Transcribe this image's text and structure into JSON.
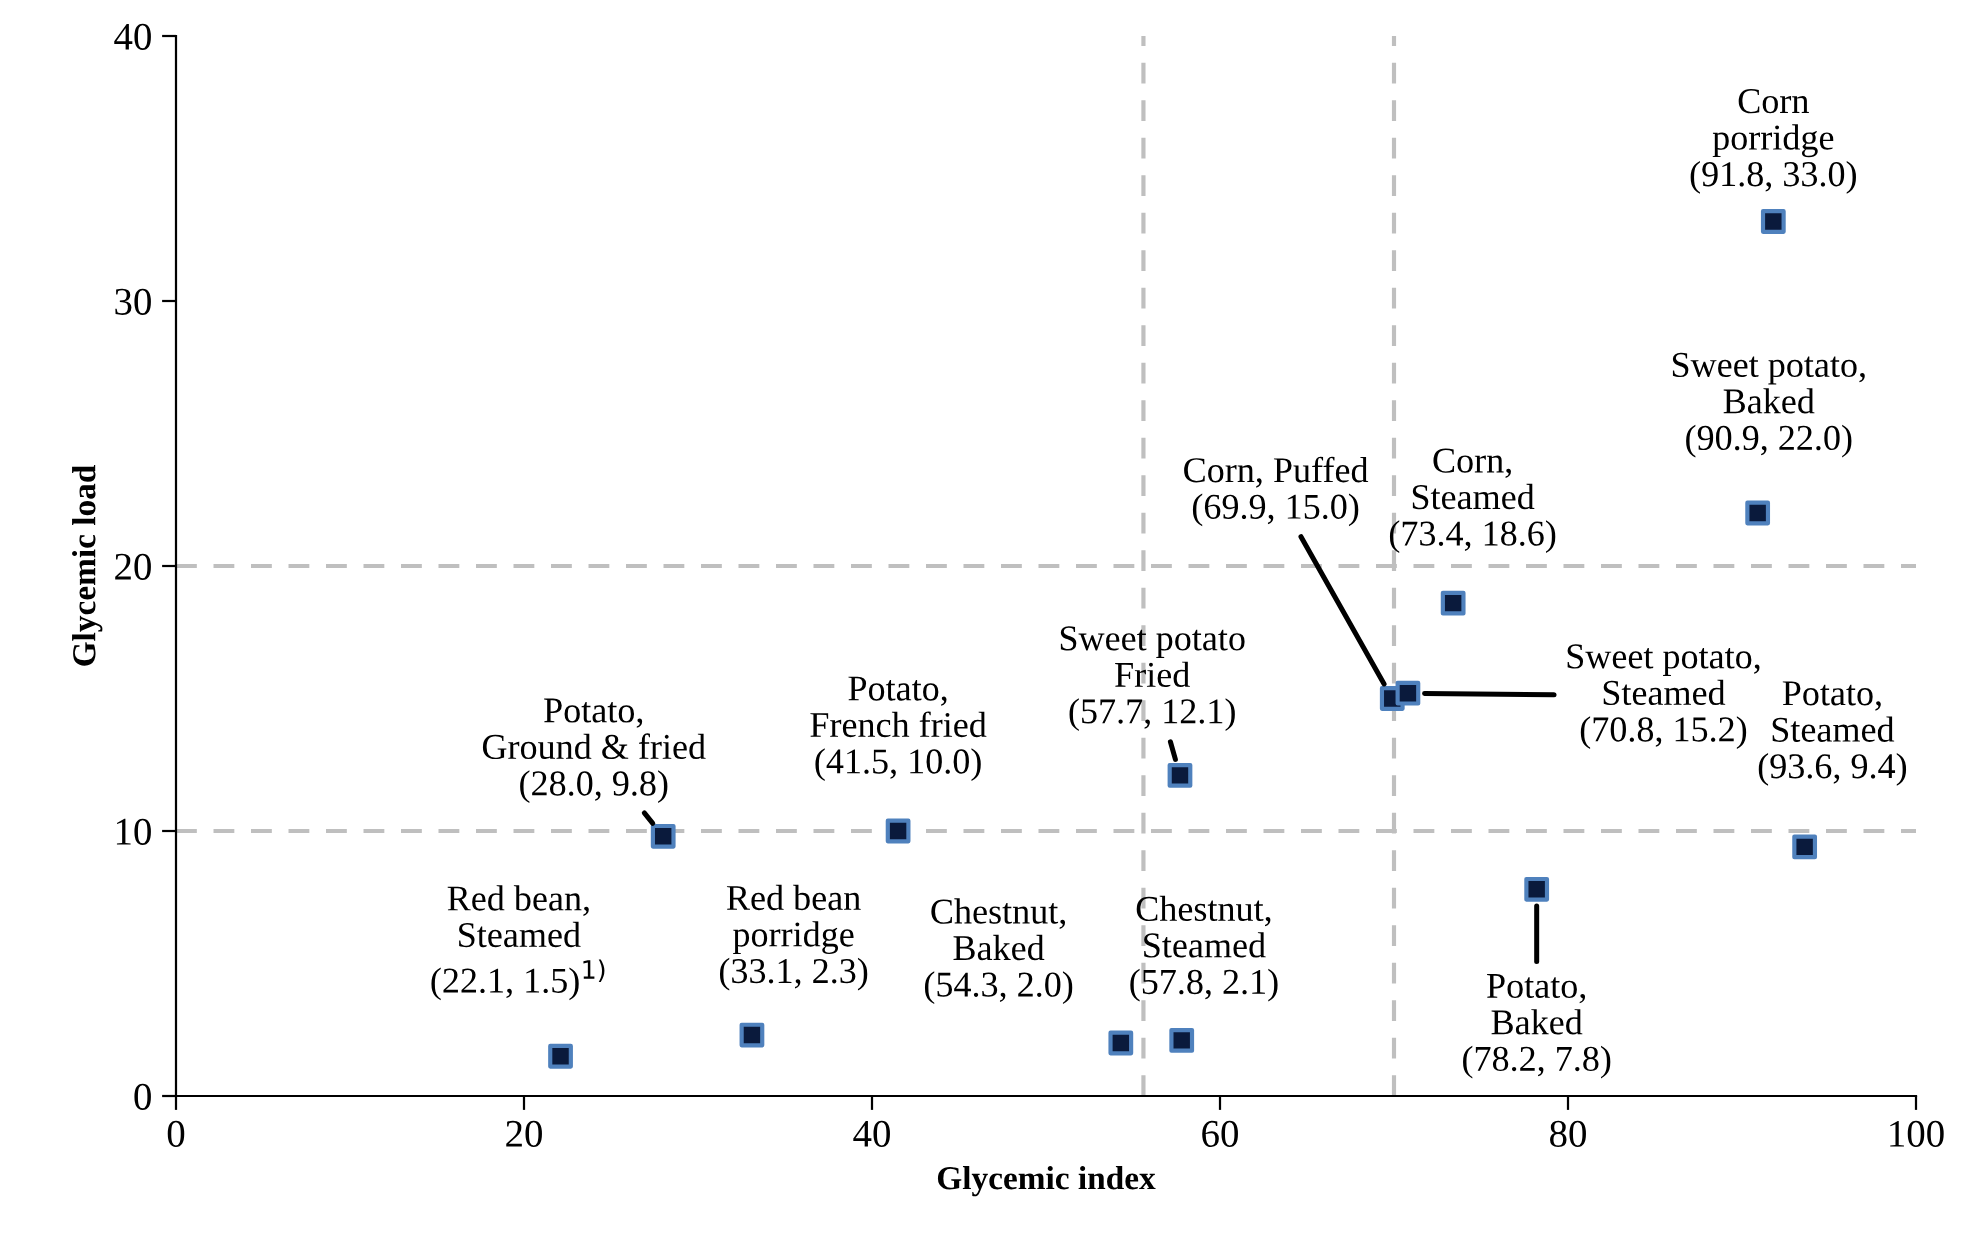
{
  "chart_data": {
    "type": "scatter",
    "xlabel": "Glycemic index",
    "ylabel": "Glycemic load",
    "x": [
      22.1,
      33.1,
      28.0,
      41.5,
      54.3,
      57.8,
      57.7,
      69.9,
      70.8,
      73.4,
      78.2,
      90.9,
      91.8,
      93.6
    ],
    "series": [
      {
        "color": "#0a1a3c",
        "values": [
          1.5,
          2.3,
          9.8,
          10.0,
          2.0,
          2.1,
          12.1,
          15.0,
          15.2,
          18.6,
          7.8,
          22.0,
          33.0,
          9.4
        ]
      }
    ],
    "marker": "square",
    "xlim": [
      0,
      100
    ],
    "xticks": [
      0,
      20,
      40,
      60,
      80,
      100
    ],
    "ylim": [
      0,
      40
    ],
    "yticks": [
      0,
      10,
      20,
      30,
      40
    ],
    "ref_lines": [
      {
        "axis": "y",
        "value": 20,
        "line_style": "dashed",
        "color": "#bfbfbf"
      },
      {
        "axis": "y",
        "value": 10,
        "line_style": "dashed",
        "color": "#bfbfbf"
      },
      {
        "axis": "x",
        "value": 55.6,
        "line_style": "dashed",
        "color": "#bfbfbf"
      },
      {
        "axis": "x",
        "value": 70,
        "line_style": "dashed",
        "color": "#bfbfbf"
      }
    ],
    "annotations": [
      {
        "text": "Red bean,\nSteamed\n(22.1, 1.5)$^{1)}$",
        "x": 22.1,
        "y": 1.5
      },
      {
        "text": "Red bean\nporridge\n(33.1, 2.3)",
        "x": 33.1,
        "y": 2.3
      },
      {
        "text": "Potato,\nGround & fried\n(28.0, 9.8)",
        "x": 28.0,
        "y": 9.8
      },
      {
        "text": "Potato,\nFrench fried\n(41.5, 10.0)",
        "x": 41.5,
        "y": 10.0
      },
      {
        "text": "Chestnut,\nBaked\n(54.3, 2.0)",
        "x": 54.3,
        "y": 2.0
      },
      {
        "text": "Chestnut,\nSteamed\n(57.8, 2.1)",
        "x": 57.8,
        "y": 2.1
      },
      {
        "text": "Sweet potato\nFried\n(57.7, 12.1)",
        "x": 57.7,
        "y": 12.1
      },
      {
        "text": "Corn, Puffed\n(69.9, 15.0)",
        "x": 69.9,
        "y": 15.0
      },
      {
        "text": "Sweet potato,\nSteamed\n(70.8, 15.2)",
        "x": 70.8,
        "y": 15.2
      },
      {
        "text": "Corn,\nSteamed\n(73.4, 18.6)",
        "x": 73.4,
        "y": 18.6
      },
      {
        "text": "Potato,\nBaked\n(78.2, 7.8)",
        "x": 78.2,
        "y": 7.8
      },
      {
        "text": "Sweet potato,\nBaked\n(90.9, 22.0)",
        "x": 90.9,
        "y": 22.0
      },
      {
        "text": "Corn\nporridge\n(91.8, 33.0)",
        "x": 91.8,
        "y": 33.0
      },
      {
        "text": "Potato,\nSteamed\n(93.6, 9.4)",
        "x": 93.6,
        "y": 9.4
      }
    ]
  }
}
